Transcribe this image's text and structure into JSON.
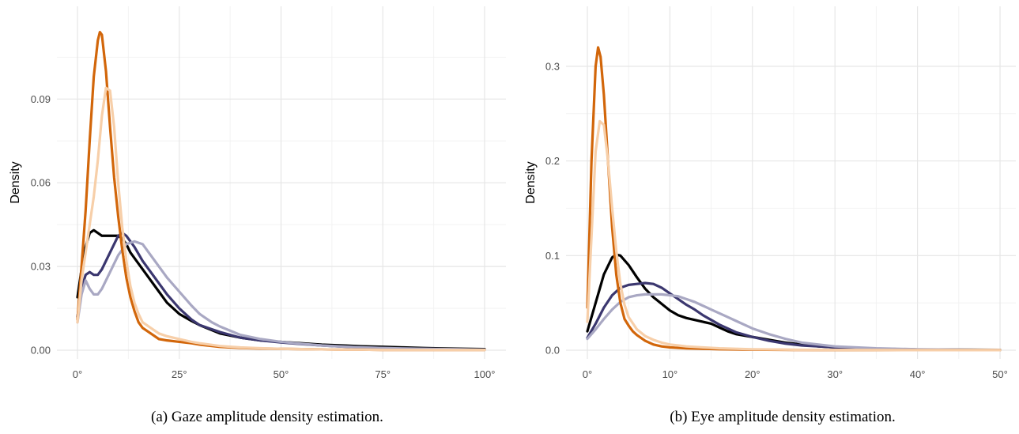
{
  "chart_data": [
    {
      "type": "line",
      "caption": "(a) Gaze amplitude density estimation.",
      "ylabel": "Density",
      "xlabel": "",
      "xlim": [
        0,
        100
      ],
      "ylim": [
        0,
        0.117
      ],
      "xticks": [
        0,
        25,
        50,
        75,
        100
      ],
      "xtick_labels": [
        "0°",
        "25°",
        "50°",
        "75°",
        "100°"
      ],
      "yticks": [
        0,
        0.03,
        0.06,
        0.09
      ],
      "ytick_labels": [
        "0.00",
        "0.03",
        "0.06",
        "0.09"
      ],
      "grid": true,
      "series": [
        {
          "color": "#000000",
          "x": [
            0,
            1,
            2,
            3,
            4,
            5,
            6,
            8,
            10,
            11,
            12,
            13,
            15,
            17,
            20,
            22,
            25,
            28,
            30,
            35,
            40,
            45,
            50,
            55,
            60,
            65,
            70,
            75,
            80,
            85,
            90,
            95,
            100
          ],
          "y": [
            0.019,
            0.029,
            0.037,
            0.042,
            0.043,
            0.042,
            0.041,
            0.041,
            0.041,
            0.04,
            0.038,
            0.035,
            0.031,
            0.027,
            0.021,
            0.017,
            0.013,
            0.0105,
            0.009,
            0.006,
            0.0045,
            0.0035,
            0.003,
            0.0025,
            0.002,
            0.0017,
            0.0014,
            0.0012,
            0.001,
            0.0008,
            0.0006,
            0.0005,
            0.0004
          ]
        },
        {
          "color": "#3b376f",
          "x": [
            0,
            1,
            2,
            3,
            4,
            5,
            6,
            8,
            10,
            11,
            12,
            14,
            16,
            18,
            20,
            22,
            25,
            28,
            30,
            33,
            35,
            40,
            45,
            50,
            55,
            60,
            65,
            70,
            75,
            80,
            85,
            90,
            95,
            100
          ],
          "y": [
            0.012,
            0.022,
            0.027,
            0.028,
            0.027,
            0.027,
            0.029,
            0.035,
            0.041,
            0.042,
            0.041,
            0.037,
            0.032,
            0.028,
            0.024,
            0.02,
            0.015,
            0.011,
            0.009,
            0.0075,
            0.0065,
            0.0045,
            0.0035,
            0.0028,
            0.0022,
            0.0017,
            0.0013,
            0.001,
            0.0008,
            0.0006,
            0.0005,
            0.0004,
            0.0003,
            0.0002
          ]
        },
        {
          "color": "#a9a8c3",
          "x": [
            0,
            1,
            2,
            3,
            4,
            5,
            6,
            8,
            10,
            12,
            14,
            16,
            18,
            20,
            22,
            25,
            28,
            30,
            33,
            35,
            40,
            45,
            50,
            55,
            60,
            65,
            70,
            75,
            80,
            85,
            90,
            95,
            100
          ],
          "y": [
            0.01,
            0.02,
            0.025,
            0.022,
            0.02,
            0.02,
            0.022,
            0.028,
            0.034,
            0.038,
            0.039,
            0.038,
            0.034,
            0.03,
            0.026,
            0.021,
            0.016,
            0.013,
            0.01,
            0.0085,
            0.0055,
            0.004,
            0.003,
            0.0023,
            0.0017,
            0.0013,
            0.001,
            0.0008,
            0.0006,
            0.0005,
            0.0004,
            0.0003,
            0.0002
          ]
        },
        {
          "color": "#d2660a",
          "x": [
            0,
            1,
            2,
            3,
            4,
            5,
            5.5,
            6,
            7,
            8,
            9,
            10,
            11,
            12,
            13,
            14,
            15,
            16,
            17,
            18,
            20,
            22,
            25,
            28,
            30,
            35,
            40,
            45,
            50,
            55,
            60,
            65,
            70,
            75,
            80,
            85,
            90,
            95,
            100
          ],
          "y": [
            0.011,
            0.03,
            0.05,
            0.075,
            0.098,
            0.111,
            0.114,
            0.113,
            0.1,
            0.08,
            0.062,
            0.048,
            0.036,
            0.026,
            0.019,
            0.014,
            0.01,
            0.008,
            0.007,
            0.006,
            0.004,
            0.0035,
            0.003,
            0.0025,
            0.002,
            0.0012,
            0.0008,
            0.0006,
            0.0005,
            0.0004,
            0.0003,
            0.0002,
            0.0002,
            0.0001,
            0.0001,
            0.0001,
            0.0001,
            0.0001,
            0.0001
          ]
        },
        {
          "color": "#f7cfa9",
          "x": [
            0,
            1,
            2,
            3,
            4,
            5,
            6,
            7,
            8,
            9,
            10,
            11,
            12,
            13,
            14,
            15,
            16,
            17,
            18,
            20,
            22,
            25,
            28,
            30,
            35,
            40,
            45,
            50,
            55,
            60,
            65,
            70,
            75,
            80,
            85,
            90,
            95,
            100
          ],
          "y": [
            0.01,
            0.025,
            0.035,
            0.045,
            0.055,
            0.068,
            0.084,
            0.094,
            0.093,
            0.08,
            0.06,
            0.044,
            0.032,
            0.023,
            0.017,
            0.013,
            0.01,
            0.009,
            0.008,
            0.006,
            0.005,
            0.004,
            0.003,
            0.0025,
            0.0015,
            0.001,
            0.0007,
            0.0005,
            0.0004,
            0.0003,
            0.0002,
            0.0002,
            0.0001,
            0.0001,
            0.0001,
            0.0001,
            0.0001,
            0.0001
          ]
        }
      ]
    },
    {
      "type": "line",
      "caption": "(b) Eye amplitude density estimation.",
      "ylabel": "Density",
      "xlabel": "",
      "xlim": [
        0,
        50
      ],
      "ylim": [
        0,
        0.345
      ],
      "xticks": [
        0,
        10,
        20,
        30,
        40,
        50
      ],
      "xtick_labels": [
        "0°",
        "10°",
        "20°",
        "30°",
        "40°",
        "50°"
      ],
      "yticks": [
        0,
        0.1,
        0.2,
        0.3
      ],
      "ytick_labels": [
        "0.0",
        "0.1",
        "0.2",
        "0.3"
      ],
      "grid": true,
      "series": [
        {
          "color": "#000000",
          "x": [
            0,
            1,
            2,
            3,
            3.5,
            4,
            5,
            6,
            7,
            8,
            9,
            10,
            11,
            12,
            13,
            14,
            15,
            16,
            17,
            18,
            20,
            22,
            24,
            26,
            28,
            30,
            35,
            40,
            45,
            50
          ],
          "y": [
            0.02,
            0.05,
            0.08,
            0.098,
            0.101,
            0.1,
            0.09,
            0.077,
            0.065,
            0.056,
            0.049,
            0.042,
            0.037,
            0.034,
            0.032,
            0.03,
            0.028,
            0.024,
            0.02,
            0.017,
            0.014,
            0.011,
            0.008,
            0.006,
            0.004,
            0.003,
            0.0015,
            0.0008,
            0.0005,
            0.0003
          ]
        },
        {
          "color": "#3b376f",
          "x": [
            0,
            1,
            2,
            3,
            4,
            5,
            6,
            7,
            8,
            9,
            10,
            11,
            12,
            13,
            14,
            15,
            16,
            17,
            18,
            20,
            22,
            24,
            26,
            28,
            30,
            35,
            40,
            45,
            50
          ],
          "y": [
            0.013,
            0.028,
            0.045,
            0.058,
            0.066,
            0.069,
            0.07,
            0.071,
            0.07,
            0.066,
            0.06,
            0.054,
            0.048,
            0.043,
            0.037,
            0.032,
            0.027,
            0.023,
            0.019,
            0.014,
            0.01,
            0.007,
            0.005,
            0.004,
            0.003,
            0.0015,
            0.0008,
            0.0004,
            0.0002
          ]
        },
        {
          "color": "#a9a8c3",
          "x": [
            0,
            1,
            2,
            3,
            4,
            5,
            6,
            7,
            8,
            9,
            10,
            11,
            12,
            13,
            14,
            15,
            16,
            17,
            18,
            20,
            22,
            24,
            26,
            28,
            30,
            35,
            40,
            45,
            50
          ],
          "y": [
            0.012,
            0.022,
            0.033,
            0.043,
            0.051,
            0.056,
            0.058,
            0.059,
            0.059,
            0.059,
            0.058,
            0.057,
            0.054,
            0.051,
            0.047,
            0.043,
            0.039,
            0.035,
            0.031,
            0.023,
            0.017,
            0.012,
            0.008,
            0.006,
            0.004,
            0.002,
            0.001,
            0.0005,
            0.0002
          ]
        },
        {
          "color": "#d2660a",
          "x": [
            0,
            0.5,
            1,
            1.3,
            1.6,
            2,
            2.5,
            3,
            3.5,
            4,
            4.5,
            5,
            5.5,
            6,
            7,
            8,
            9,
            10,
            12,
            14,
            16,
            18,
            20,
            25,
            30,
            35,
            40,
            45,
            50
          ],
          "y": [
            0.045,
            0.2,
            0.3,
            0.32,
            0.31,
            0.27,
            0.2,
            0.13,
            0.08,
            0.05,
            0.033,
            0.026,
            0.02,
            0.016,
            0.01,
            0.006,
            0.004,
            0.003,
            0.002,
            0.0015,
            0.001,
            0.0008,
            0.0006,
            0.0003,
            0.0002,
            0.0001,
            0.0001,
            0.0001,
            0.0001
          ]
        },
        {
          "color": "#f7cfa9",
          "x": [
            0,
            0.5,
            1,
            1.5,
            2,
            2.5,
            3,
            3.5,
            4,
            4.5,
            5,
            6,
            7,
            8,
            9,
            10,
            11,
            12,
            14,
            16,
            18,
            20,
            25,
            30,
            35,
            40,
            45,
            50
          ],
          "y": [
            0.03,
            0.12,
            0.21,
            0.242,
            0.238,
            0.2,
            0.15,
            0.105,
            0.07,
            0.048,
            0.035,
            0.022,
            0.015,
            0.011,
            0.008,
            0.006,
            0.005,
            0.004,
            0.003,
            0.002,
            0.0015,
            0.001,
            0.0005,
            0.0003,
            0.0002,
            0.0001,
            0.0001,
            0.0001
          ]
        }
      ]
    }
  ]
}
